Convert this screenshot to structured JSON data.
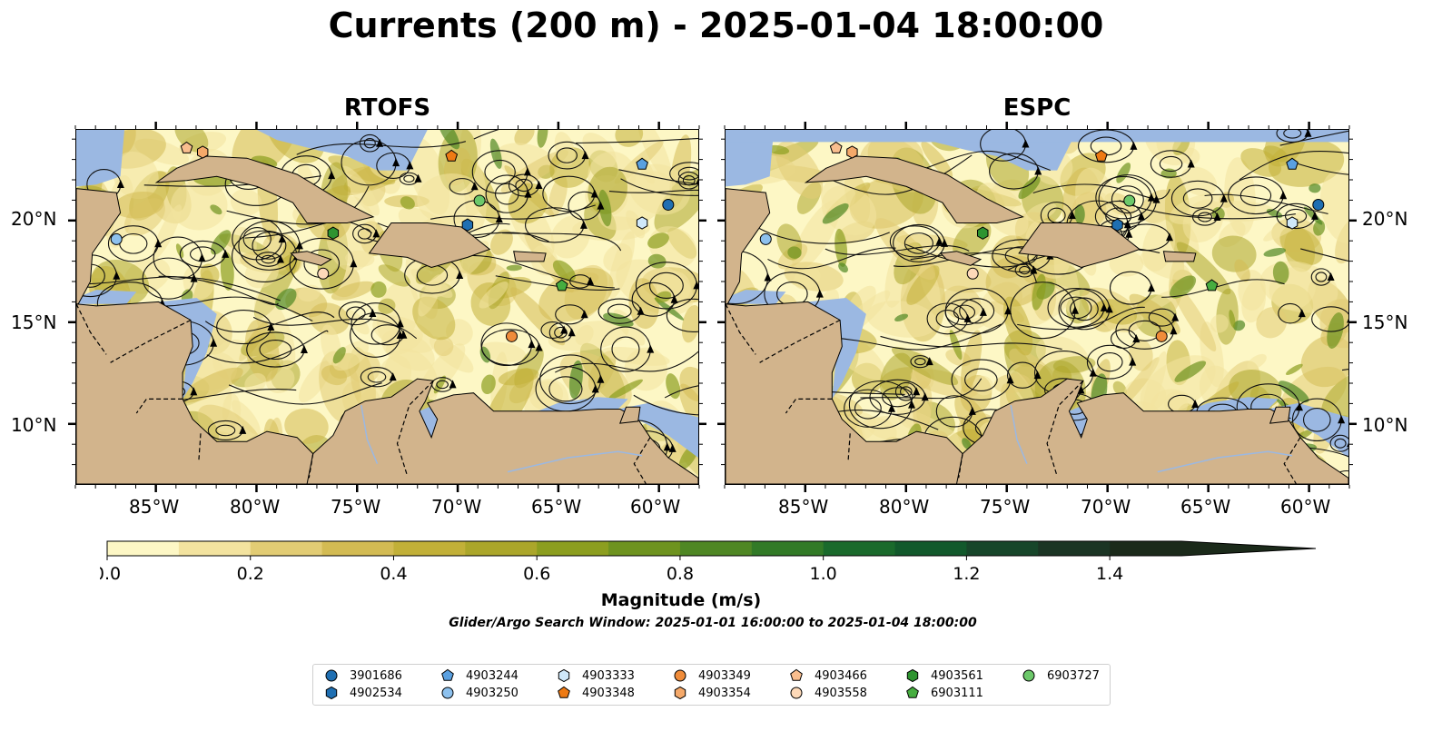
{
  "title": "Currents (200 m) - 2025-01-04 18:00:00",
  "panels": [
    {
      "title": "RTOFS"
    },
    {
      "title": "ESPC"
    }
  ],
  "lon_ticks": [
    "85°W",
    "80°W",
    "75°W",
    "70°W",
    "65°W",
    "60°W"
  ],
  "lat_ticks": [
    "20°N",
    "15°N",
    "10°N"
  ],
  "colorbar": {
    "label": "Magnitude (m/s)",
    "ticks": [
      "0.0",
      "0.2",
      "0.4",
      "0.6",
      "0.8",
      "1.0",
      "1.2",
      "1.4"
    ],
    "range": [
      0.0,
      1.5
    ],
    "extend": "max",
    "colors": [
      "#fdf7c5",
      "#f3e39f",
      "#e2cc74",
      "#d3bb53",
      "#c2b038",
      "#aba62a",
      "#8c9e1f",
      "#6e931f",
      "#4f8724",
      "#327a27",
      "#1a6a2c",
      "#12592c",
      "#17462a",
      "#1b3524",
      "#1b2a1a"
    ]
  },
  "search_window": "Glider/Argo Search Window: 2025-01-01 16:00:00 to 2025-01-04 18:00:00",
  "map_colors": {
    "land": "#d2b48c",
    "ocean": "#9bb8e2",
    "border": "#000000"
  },
  "floats": [
    {
      "id": "3901686",
      "marker": "circle",
      "color": "#1f6fb2",
      "lon": -59.5,
      "lat": 20.8
    },
    {
      "id": "4902534",
      "marker": "hexagon",
      "color": "#1f6fb2",
      "lon": -69.5,
      "lat": 19.8
    },
    {
      "id": "4903244",
      "marker": "pentagon",
      "color": "#5aa0e0",
      "lon": -60.8,
      "lat": 22.8
    },
    {
      "id": "4903250",
      "marker": "circle",
      "color": "#8dc1ee",
      "lon": -87.0,
      "lat": 19.1
    },
    {
      "id": "4903333",
      "marker": "hexagon",
      "color": "#cfe8fa",
      "lon": -60.8,
      "lat": 19.9
    },
    {
      "id": "4903348",
      "marker": "pentagon",
      "color": "#ee7a14",
      "lon": -70.3,
      "lat": 23.2
    },
    {
      "id": "4903349",
      "marker": "circle",
      "color": "#f08c3a",
      "lon": -67.3,
      "lat": 14.3
    },
    {
      "id": "4903354",
      "marker": "hexagon",
      "color": "#f5a96a",
      "lon": -82.7,
      "lat": 23.4
    },
    {
      "id": "4903466",
      "marker": "pentagon",
      "color": "#f9be8e",
      "lon": -83.5,
      "lat": 23.6
    },
    {
      "id": "4903558",
      "marker": "circle",
      "color": "#fdd9b8",
      "lon": -76.7,
      "lat": 17.4
    },
    {
      "id": "4903561",
      "marker": "hexagon",
      "color": "#2e9430",
      "lon": -76.2,
      "lat": 19.4
    },
    {
      "id": "6903111",
      "marker": "pentagon",
      "color": "#46ad3f",
      "lon": -64.8,
      "lat": 16.8
    },
    {
      "id": "6903727",
      "marker": "circle",
      "color": "#6cc86a",
      "lon": -68.9,
      "lat": 21.0
    }
  ]
}
